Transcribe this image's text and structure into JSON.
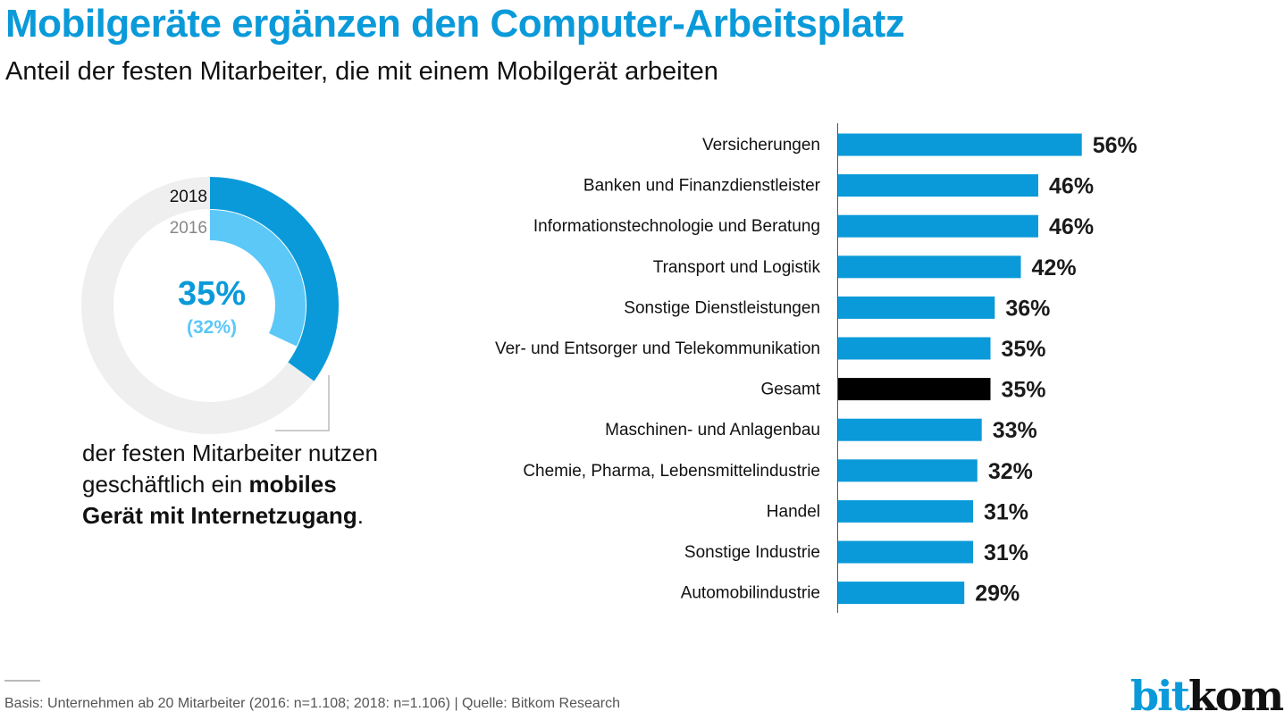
{
  "header": {
    "title": "Mobilgeräte ergänzen den Computer-Arbeitsplatz",
    "subtitle": "Anteil der festen Mitarbeiter, die mit einem Mobilgerät arbeiten"
  },
  "donut": {
    "label_2018": "2018",
    "label_2016": "2016",
    "value_2018": 35,
    "value_2016": 32,
    "center_main": "35%",
    "center_sub": "(32%)",
    "colors": {
      "y2018": "#0a9ad9",
      "y2016": "#5bc8f8",
      "track": "#efefef"
    }
  },
  "caption": {
    "line1": "der festen Mitarbeiter nutzen",
    "line2_plain": "geschäftlich ein ",
    "line2_bold": "mobiles",
    "line3_bold": "Gerät mit Internetzugang",
    "line3_end": "."
  },
  "chart_data": [
    {
      "type": "pie",
      "title": "Anteil der festen Mitarbeiter, die mit einem Mobilgerät arbeiten",
      "series": [
        {
          "name": "2018",
          "values": [
            35
          ]
        },
        {
          "name": "2016",
          "values": [
            32
          ]
        }
      ],
      "unit": "%"
    },
    {
      "type": "bar",
      "orientation": "horizontal",
      "categories": [
        "Versicherungen",
        "Banken und Finanzdienstleister",
        "Informationstechnologie und Beratung",
        "Transport und Logistik",
        "Sonstige Dienstleistungen",
        "Ver- und Entsorger und Telekommunikation",
        "Gesamt",
        "Maschinen- und Anlagenbau",
        "Chemie, Pharma, Lebensmittelindustrie",
        "Handel",
        "Sonstige Industrie",
        "Automobilindustrie"
      ],
      "values": [
        56,
        46,
        46,
        42,
        36,
        35,
        35,
        33,
        32,
        31,
        31,
        29
      ],
      "labels": [
        "56%",
        "46%",
        "46%",
        "42%",
        "36%",
        "35%",
        "35%",
        "33%",
        "32%",
        "31%",
        "31%",
        "29%"
      ],
      "highlight": "Gesamt",
      "colors": {
        "bar": "#0a9ad9",
        "highlight": "#000000"
      },
      "xlim": [
        0,
        100
      ],
      "grid": false,
      "unit": "%"
    }
  ],
  "footer": {
    "source": "Basis: Unternehmen ab 20 Mitarbeiter (2016: n=1.108; 2018: n=1.106) | Quelle: Bitkom Research"
  },
  "logo": {
    "part1": "bit",
    "part2": "kom"
  }
}
